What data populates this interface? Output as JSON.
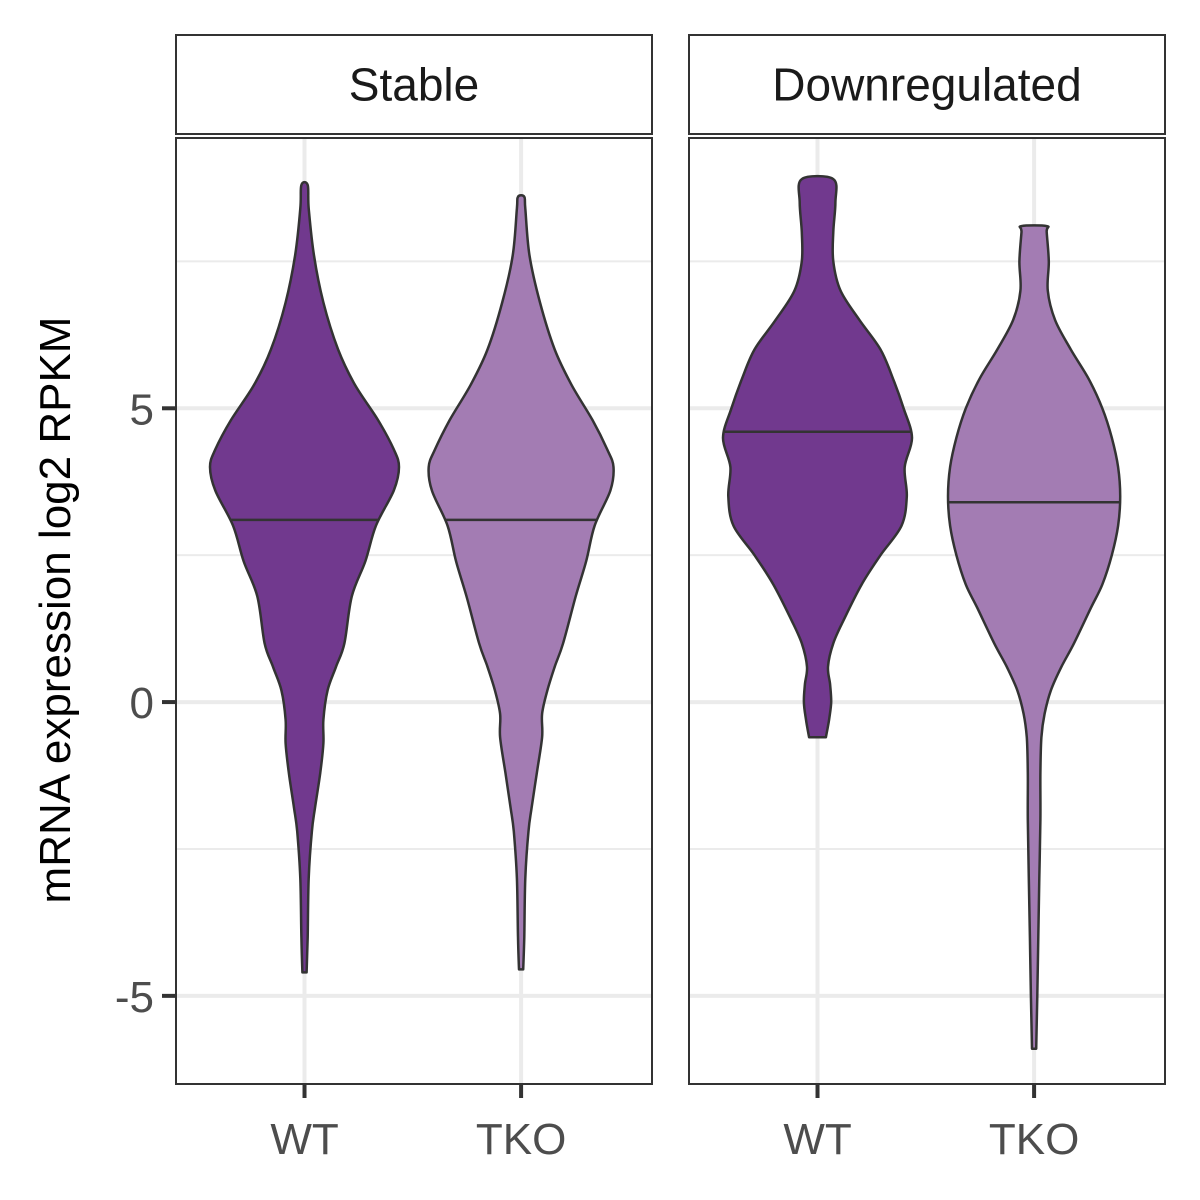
{
  "chart_data": {
    "type": "violin",
    "ylabel": "mRNA expression log2 RPKM",
    "xlabel": "",
    "ylim": [
      -6.5,
      9.6
    ],
    "y_ticks": [
      -5,
      0,
      5
    ],
    "y_tick_labels": [
      "-5",
      "0",
      "5"
    ],
    "grid": true,
    "colors": {
      "WT": "#71398e",
      "TKO": "#a37cb3",
      "outline": "#333333",
      "grid": "#ebebeb"
    },
    "panels": [
      {
        "name": "Stable",
        "categories": [
          "WT",
          "TKO"
        ],
        "violins": [
          {
            "category": "WT",
            "median": 3.1,
            "profile": [
              [
                -4.6,
                0.02
              ],
              [
                -4.0,
                0.03
              ],
              [
                -3.0,
                0.04
              ],
              [
                -2.2,
                0.07
              ],
              [
                -1.8,
                0.1
              ],
              [
                -1.2,
                0.15
              ],
              [
                -0.7,
                0.18
              ],
              [
                -0.3,
                0.18
              ],
              [
                0.2,
                0.22
              ],
              [
                0.6,
                0.3
              ],
              [
                1.0,
                0.38
              ],
              [
                1.8,
                0.45
              ],
              [
                2.4,
                0.58
              ],
              [
                3.0,
                0.68
              ],
              [
                3.6,
                0.85
              ],
              [
                4.0,
                0.9
              ],
              [
                4.3,
                0.85
              ],
              [
                4.8,
                0.7
              ],
              [
                5.4,
                0.48
              ],
              [
                6.0,
                0.32
              ],
              [
                6.8,
                0.18
              ],
              [
                7.6,
                0.09
              ],
              [
                8.4,
                0.04
              ],
              [
                8.8,
                0.03
              ]
            ]
          },
          {
            "category": "TKO",
            "median": 3.1,
            "profile": [
              [
                -4.55,
                0.02
              ],
              [
                -4.0,
                0.03
              ],
              [
                -3.0,
                0.04
              ],
              [
                -2.2,
                0.07
              ],
              [
                -1.8,
                0.1
              ],
              [
                -1.2,
                0.15
              ],
              [
                -0.6,
                0.2
              ],
              [
                -0.2,
                0.2
              ],
              [
                0.2,
                0.25
              ],
              [
                0.6,
                0.32
              ],
              [
                1.0,
                0.4
              ],
              [
                1.8,
                0.52
              ],
              [
                2.4,
                0.62
              ],
              [
                3.0,
                0.7
              ],
              [
                3.6,
                0.85
              ],
              [
                4.0,
                0.88
              ],
              [
                4.3,
                0.82
              ],
              [
                4.8,
                0.68
              ],
              [
                5.4,
                0.48
              ],
              [
                6.0,
                0.32
              ],
              [
                6.8,
                0.18
              ],
              [
                7.6,
                0.08
              ],
              [
                8.4,
                0.04
              ],
              [
                8.6,
                0.03
              ]
            ]
          }
        ]
      },
      {
        "name": "Downregulated",
        "categories": [
          "WT",
          "TKO"
        ],
        "violins": [
          {
            "category": "WT",
            "median": 4.6,
            "profile": [
              [
                -0.6,
                0.08
              ],
              [
                -0.3,
                0.11
              ],
              [
                0.0,
                0.13
              ],
              [
                0.3,
                0.12
              ],
              [
                0.6,
                0.1
              ],
              [
                1.0,
                0.15
              ],
              [
                1.4,
                0.25
              ],
              [
                2.0,
                0.42
              ],
              [
                2.5,
                0.6
              ],
              [
                3.0,
                0.8
              ],
              [
                3.5,
                0.85
              ],
              [
                4.0,
                0.83
              ],
              [
                4.5,
                0.9
              ],
              [
                5.0,
                0.82
              ],
              [
                5.5,
                0.72
              ],
              [
                6.0,
                0.6
              ],
              [
                6.5,
                0.4
              ],
              [
                7.0,
                0.22
              ],
              [
                7.5,
                0.15
              ],
              [
                8.0,
                0.15
              ],
              [
                8.5,
                0.17
              ],
              [
                8.9,
                0.15
              ]
            ]
          },
          {
            "category": "TKO",
            "median": 3.4,
            "profile": [
              [
                -5.9,
                0.02
              ],
              [
                -5.0,
                0.03
              ],
              [
                -4.0,
                0.04
              ],
              [
                -3.0,
                0.05
              ],
              [
                -2.0,
                0.06
              ],
              [
                -1.2,
                0.06
              ],
              [
                -0.6,
                0.07
              ],
              [
                -0.2,
                0.1
              ],
              [
                0.2,
                0.16
              ],
              [
                0.6,
                0.26
              ],
              [
                1.0,
                0.38
              ],
              [
                1.6,
                0.54
              ],
              [
                2.0,
                0.65
              ],
              [
                2.5,
                0.74
              ],
              [
                3.0,
                0.8
              ],
              [
                3.5,
                0.82
              ],
              [
                4.0,
                0.8
              ],
              [
                4.5,
                0.74
              ],
              [
                5.0,
                0.65
              ],
              [
                5.5,
                0.52
              ],
              [
                6.0,
                0.35
              ],
              [
                6.5,
                0.2
              ],
              [
                7.0,
                0.13
              ],
              [
                7.5,
                0.14
              ],
              [
                8.0,
                0.12
              ],
              [
                8.1,
                0.12
              ]
            ]
          }
        ]
      }
    ]
  }
}
